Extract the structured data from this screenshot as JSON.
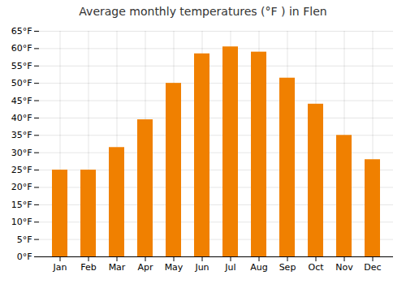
{
  "chart_data": {
    "type": "bar",
    "title": "Average monthly temperatures (°F ) in Flen",
    "categories": [
      "Jan",
      "Feb",
      "Mar",
      "Apr",
      "May",
      "Jun",
      "Jul",
      "Aug",
      "Sep",
      "Oct",
      "Nov",
      "Dec"
    ],
    "values": [
      25,
      25,
      31.5,
      39.5,
      50,
      58.5,
      60.5,
      59,
      51.5,
      44,
      35,
      28
    ],
    "color": "#F08000",
    "ylim": [
      0,
      65
    ],
    "yticks": [
      {
        "value": 0,
        "label": "0°F"
      },
      {
        "value": 5,
        "label": "5°F"
      },
      {
        "value": 10,
        "label": "10°F"
      },
      {
        "value": 15,
        "label": "15°F"
      },
      {
        "value": 20,
        "label": "20°F"
      },
      {
        "value": 25,
        "label": "25°F"
      },
      {
        "value": 30,
        "label": "30°F"
      },
      {
        "value": 35,
        "label": "35°F"
      },
      {
        "value": 40,
        "label": "40°F"
      },
      {
        "value": 45,
        "label": "45°F"
      },
      {
        "value": 50,
        "label": "50°F"
      },
      {
        "value": 55,
        "label": "55°F"
      },
      {
        "value": 60,
        "label": "60°F"
      },
      {
        "value": 65,
        "label": "65°F"
      }
    ],
    "grid": true
  }
}
